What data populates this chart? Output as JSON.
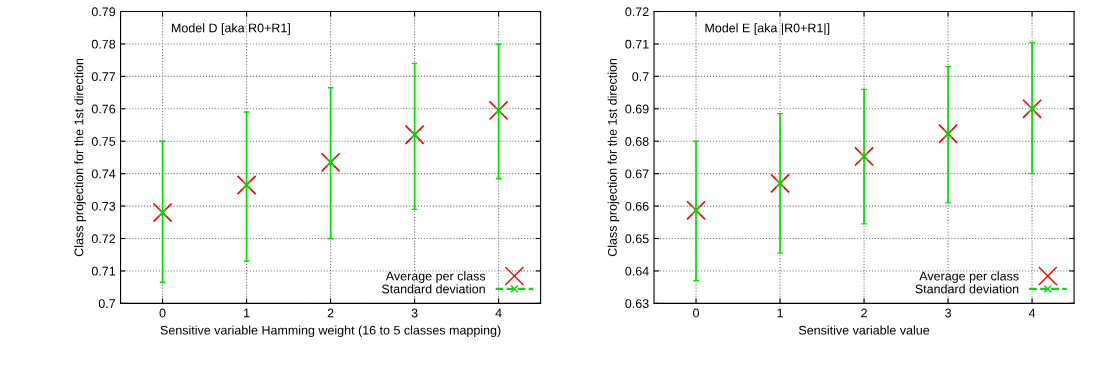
{
  "chart_data": [
    {
      "type": "scatter",
      "title": "Model D [aka R0+R1]",
      "xlabel": "Sensitive variable Hamming weight (16 to 5 classes mapping)",
      "ylabel": "Class projection for the 1st direction",
      "x": [
        0,
        1,
        2,
        3,
        4
      ],
      "xlim": [
        -0.5,
        4.5
      ],
      "xticks": [
        0,
        1,
        2,
        3,
        4
      ],
      "ylim": [
        0.7,
        0.79
      ],
      "yticks": [
        0.7,
        0.71,
        0.72,
        0.73,
        0.74,
        0.75,
        0.76,
        0.77,
        0.78,
        0.79
      ],
      "grid": true,
      "legend": "bottom right",
      "series": [
        {
          "name": "Average per class",
          "color": "#ff0000",
          "marker": "cross",
          "values": [
            0.728,
            0.7365,
            0.7435,
            0.752,
            0.7595
          ]
        },
        {
          "name": "Standard deviation",
          "color": "#00dd00",
          "marker": "cross",
          "line_style": "dashed",
          "values": [
            0.728,
            0.7365,
            0.7435,
            0.752,
            0.7595
          ],
          "errors": [
            [
              0.7065,
              0.75
            ],
            [
              0.713,
              0.759
            ],
            [
              0.72,
              0.7665
            ],
            [
              0.729,
              0.774
            ],
            [
              0.7385,
              0.78
            ]
          ]
        }
      ]
    },
    {
      "type": "scatter",
      "title": "Model E [aka |R0+R1|]",
      "xlabel": "Sensitive variable value",
      "ylabel": "Class projection for the 1st direction",
      "x": [
        0,
        1,
        2,
        3,
        4
      ],
      "xlim": [
        -0.5,
        4.5
      ],
      "xticks": [
        0,
        1,
        2,
        3,
        4
      ],
      "ylim": [
        0.63,
        0.72
      ],
      "yticks": [
        0.63,
        0.64,
        0.65,
        0.66,
        0.67,
        0.68,
        0.69,
        0.7,
        0.71,
        0.72
      ],
      "grid": true,
      "legend": "bottom right",
      "series": [
        {
          "name": "Average per class",
          "color": "#ff0000",
          "marker": "cross",
          "values": [
            0.6587,
            0.667,
            0.6753,
            0.6823,
            0.69
          ]
        },
        {
          "name": "Standard deviation",
          "color": "#00dd00",
          "marker": "cross",
          "line_style": "dashed",
          "values": [
            0.6587,
            0.667,
            0.6753,
            0.6823,
            0.69
          ],
          "errors": [
            [
              0.637,
              0.68
            ],
            [
              0.6455,
              0.6885
            ],
            [
              0.6545,
              0.696
            ],
            [
              0.661,
              0.703
            ],
            [
              0.67,
              0.7105
            ]
          ]
        }
      ]
    }
  ]
}
